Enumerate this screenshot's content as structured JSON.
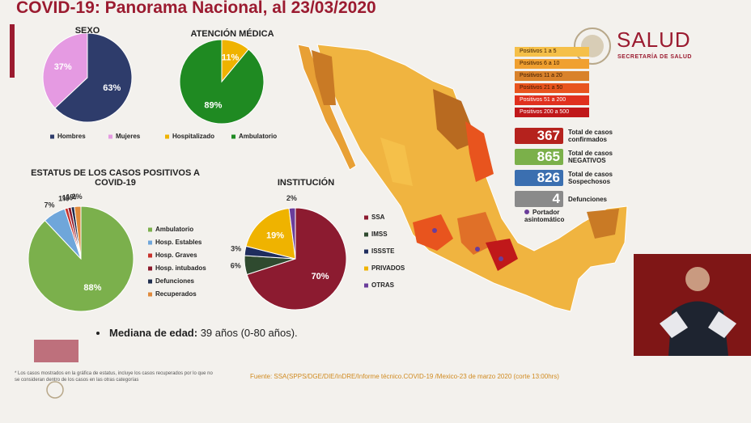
{
  "header": {
    "title": "COVID-19: Panorama Nacional, al 23/03/2020"
  },
  "logo": {
    "name": "SALUD",
    "subtitle": "SECRETARÍA DE SALUD"
  },
  "chart_data": [
    {
      "type": "pie",
      "title": "SEXO",
      "categories": [
        "Hombres",
        "Mujeres"
      ],
      "values": [
        63,
        37
      ],
      "value_labels": [
        "63%",
        "37%"
      ],
      "colors": [
        "#2e3c6b",
        "#e59ae2"
      ]
    },
    {
      "type": "pie",
      "title": "ATENCIÓN MÉDICA",
      "categories": [
        "Hospitalizado",
        "Ambulatorio"
      ],
      "values": [
        11,
        89
      ],
      "value_labels": [
        "11%",
        "89%"
      ],
      "colors": [
        "#efb300",
        "#1f8a22"
      ]
    },
    {
      "type": "pie",
      "title": "ESTATUS DE LOS CASOS POSITIVOS A COVID-19",
      "categories": [
        "Ambulatorio",
        "Hosp. Estables",
        "Hosp. Graves",
        "Hosp. intubados",
        "Defunciones",
        "Recuperados"
      ],
      "values": [
        88,
        7,
        1,
        1,
        1,
        2
      ],
      "value_labels": [
        "88%",
        "7%",
        "1%",
        "1%",
        "1%",
        "2%"
      ],
      "colors": [
        "#7bb04c",
        "#6fa6da",
        "#c8322c",
        "#8c1a2c",
        "#1f2d4e",
        "#e08a3c"
      ]
    },
    {
      "type": "pie",
      "title": "INSTITUCIÓN",
      "categories": [
        "SSA",
        "IMSS",
        "ISSSTE",
        "PRIVADOS",
        "OTRAS"
      ],
      "values": [
        70,
        6,
        3,
        19,
        2
      ],
      "value_labels": [
        "70%",
        "6%",
        "3%",
        "19%",
        "2%"
      ],
      "colors": [
        "#8c1b30",
        "#2f4a2f",
        "#1f2d5e",
        "#efb300",
        "#6a3d9a"
      ]
    }
  ],
  "map": {
    "legend": [
      "Positivos 1 a 5",
      "Positivos 6 a 10",
      "Positivos 11 a 20",
      "Positivos 21 a 50",
      "Positivos 51 a 200",
      "Positivos 200 a 500"
    ],
    "legend_colors": [
      "#f5c04a",
      "#f0a030",
      "#d9822b",
      "#e8541e",
      "#e0301e",
      "#c0181a"
    ],
    "stats": [
      {
        "value": 367,
        "label": "Total de casos confirmados",
        "color": "#b5221d"
      },
      {
        "value": 865,
        "label": "Total de casos NEGATIVOS",
        "color": "#7bb04a"
      },
      {
        "value": 826,
        "label": "Total de casos Sospechosos",
        "color": "#3b6fb0"
      },
      {
        "value": 4,
        "label": "Defunciones",
        "color": "#8a8a8a"
      }
    ],
    "carrier": "Portador asintomático"
  },
  "median": {
    "label": "Mediana de edad:",
    "text": "39 años (0-80 años)."
  },
  "footnote": "* Los casos mostrados en la gráfica de estatus, incluye los casos recuperados por lo que no se consideran dentro de los casos en las otras categorías",
  "source": "Fuente: SSA(SPPS/DGE/DIE/InDRE/Informe técnico.COVID-19 /Mexico-23 de marzo 2020 (corte 13:00hrs)"
}
